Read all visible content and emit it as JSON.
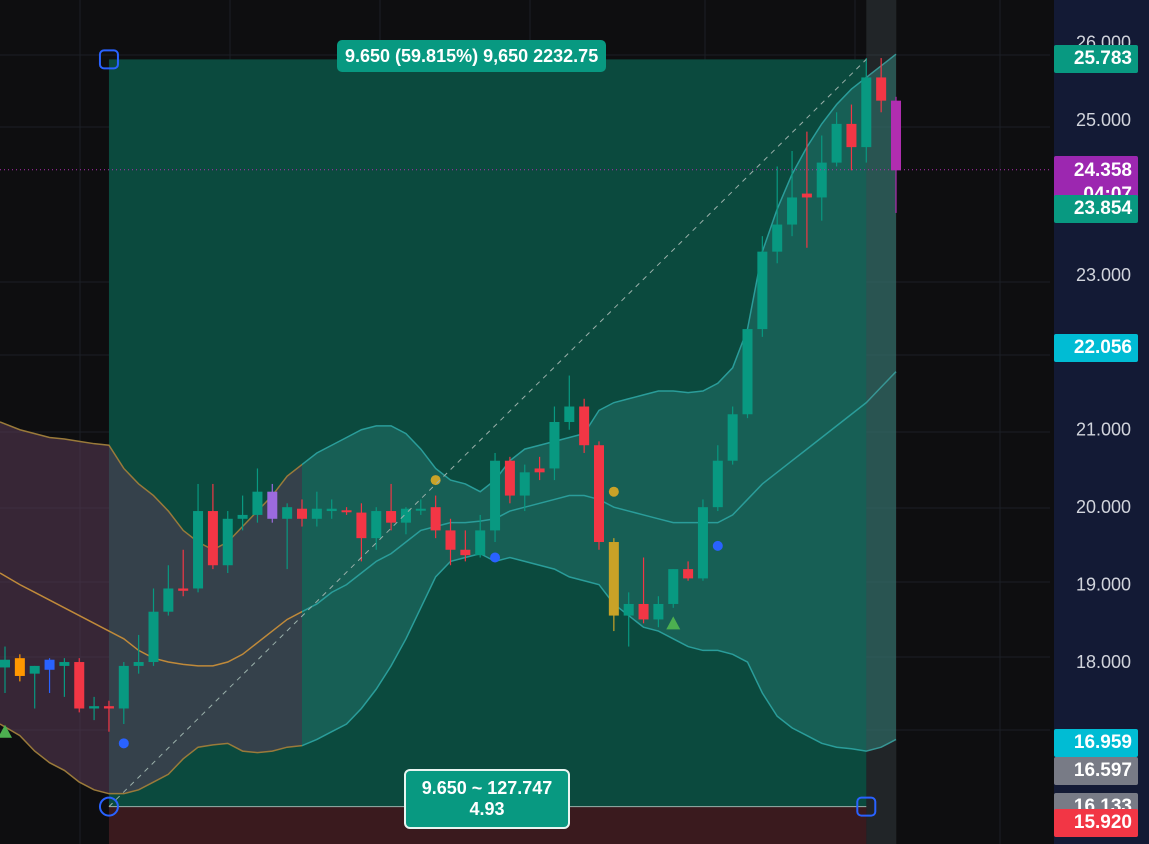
{
  "chart_data": {
    "type": "candlestick",
    "y_axis": {
      "ticks": [
        "26.000",
        "25.000",
        "23.000",
        "22.056",
        "21.000",
        "20.000",
        "19.000",
        "18.000"
      ],
      "range": [
        15.65,
        26.55
      ]
    },
    "candles": [
      {
        "o": 17.93,
        "h": 18.2,
        "l": 17.6,
        "c": 18.03,
        "color": "#089981"
      },
      {
        "o": 18.05,
        "h": 18.1,
        "l": 17.75,
        "c": 17.82,
        "color": "#ff9800"
      },
      {
        "o": 17.85,
        "h": 17.95,
        "l": 17.4,
        "c": 17.95,
        "color": "#089981"
      },
      {
        "o": 17.9,
        "h": 18.05,
        "l": 17.6,
        "c": 18.03,
        "color": "#2962ff"
      },
      {
        "o": 18.0,
        "h": 18.05,
        "l": 17.55,
        "c": 17.95,
        "color": "#089981"
      },
      {
        "o": 18.0,
        "h": 18.05,
        "l": 17.35,
        "c": 17.4,
        "color": "#f23645"
      },
      {
        "o": 17.4,
        "h": 17.55,
        "l": 17.25,
        "c": 17.43,
        "color": "#089981"
      },
      {
        "o": 17.43,
        "h": 17.5,
        "l": 17.1,
        "c": 17.4,
        "color": "#f23645"
      },
      {
        "o": 17.4,
        "h": 18.0,
        "l": 17.2,
        "c": 17.95,
        "color": "#089981"
      },
      {
        "o": 17.95,
        "h": 18.35,
        "l": 17.85,
        "c": 18.0,
        "color": "#089981"
      },
      {
        "o": 18.0,
        "h": 18.95,
        "l": 17.95,
        "c": 18.65,
        "color": "#089981"
      },
      {
        "o": 18.65,
        "h": 19.25,
        "l": 18.6,
        "c": 18.95,
        "color": "#089981"
      },
      {
        "o": 18.95,
        "h": 19.45,
        "l": 18.85,
        "c": 18.92,
        "color": "#f23645"
      },
      {
        "o": 18.95,
        "h": 20.3,
        "l": 18.9,
        "c": 19.95,
        "color": "#089981"
      },
      {
        "o": 19.95,
        "h": 20.3,
        "l": 19.2,
        "c": 19.25,
        "color": "#f23645"
      },
      {
        "o": 19.25,
        "h": 19.95,
        "l": 19.15,
        "c": 19.85,
        "color": "#089981"
      },
      {
        "o": 19.85,
        "h": 20.15,
        "l": 19.7,
        "c": 19.9,
        "color": "#089981"
      },
      {
        "o": 19.9,
        "h": 20.5,
        "l": 19.8,
        "c": 20.2,
        "color": "#089981"
      },
      {
        "o": 20.2,
        "h": 20.3,
        "l": 19.8,
        "c": 19.85,
        "color": "#9c6ade"
      },
      {
        "o": 19.85,
        "h": 20.05,
        "l": 19.2,
        "c": 20.0,
        "color": "#089981"
      },
      {
        "o": 19.98,
        "h": 20.1,
        "l": 19.75,
        "c": 19.85,
        "color": "#f23645"
      },
      {
        "o": 19.85,
        "h": 20.2,
        "l": 19.75,
        "c": 19.98,
        "color": "#089981"
      },
      {
        "o": 19.98,
        "h": 20.1,
        "l": 19.85,
        "c": 19.95,
        "color": "#089981"
      },
      {
        "o": 19.95,
        "h": 20.0,
        "l": 19.9,
        "c": 19.96,
        "color": "#f23645"
      },
      {
        "o": 19.93,
        "h": 20.05,
        "l": 19.3,
        "c": 19.6,
        "color": "#f23645"
      },
      {
        "o": 19.6,
        "h": 20.0,
        "l": 19.45,
        "c": 19.95,
        "color": "#089981"
      },
      {
        "o": 19.95,
        "h": 20.3,
        "l": 19.7,
        "c": 19.8,
        "color": "#f23645"
      },
      {
        "o": 19.8,
        "h": 20.0,
        "l": 19.65,
        "c": 19.98,
        "color": "#089981"
      },
      {
        "o": 19.98,
        "h": 20.1,
        "l": 19.9,
        "c": 19.98,
        "color": "#089981"
      },
      {
        "o": 20.0,
        "h": 20.15,
        "l": 19.6,
        "c": 19.7,
        "color": "#f23645"
      },
      {
        "o": 19.7,
        "h": 19.85,
        "l": 19.25,
        "c": 19.45,
        "color": "#f23645"
      },
      {
        "o": 19.45,
        "h": 19.7,
        "l": 19.3,
        "c": 19.38,
        "color": "#f23645"
      },
      {
        "o": 19.38,
        "h": 19.9,
        "l": 19.35,
        "c": 19.7,
        "color": "#089981"
      },
      {
        "o": 19.7,
        "h": 20.7,
        "l": 19.55,
        "c": 20.6,
        "color": "#089981"
      },
      {
        "o": 20.6,
        "h": 20.65,
        "l": 20.05,
        "c": 20.15,
        "color": "#f23645"
      },
      {
        "o": 20.15,
        "h": 20.55,
        "l": 19.95,
        "c": 20.45,
        "color": "#089981"
      },
      {
        "o": 20.45,
        "h": 20.65,
        "l": 20.35,
        "c": 20.5,
        "color": "#f23645"
      },
      {
        "o": 20.5,
        "h": 21.3,
        "l": 20.35,
        "c": 21.1,
        "color": "#089981"
      },
      {
        "o": 21.1,
        "h": 21.7,
        "l": 21.0,
        "c": 21.3,
        "color": "#089981"
      },
      {
        "o": 21.3,
        "h": 21.4,
        "l": 20.7,
        "c": 20.8,
        "color": "#f23645"
      },
      {
        "o": 20.8,
        "h": 20.85,
        "l": 19.45,
        "c": 19.55,
        "color": "#f23645"
      },
      {
        "o": 19.55,
        "h": 19.6,
        "l": 18.4,
        "c": 18.6,
        "color": "#c9a227"
      },
      {
        "o": 18.6,
        "h": 18.9,
        "l": 18.2,
        "c": 18.75,
        "color": "#089981"
      },
      {
        "o": 18.75,
        "h": 19.35,
        "l": 18.5,
        "c": 18.55,
        "color": "#f23645"
      },
      {
        "o": 18.55,
        "h": 18.85,
        "l": 18.45,
        "c": 18.75,
        "color": "#089981"
      },
      {
        "o": 18.75,
        "h": 19.2,
        "l": 18.7,
        "c": 19.2,
        "color": "#089981"
      },
      {
        "o": 19.2,
        "h": 19.3,
        "l": 19.05,
        "c": 19.08,
        "color": "#f23645"
      },
      {
        "o": 19.08,
        "h": 20.1,
        "l": 19.05,
        "c": 20.0,
        "color": "#089981"
      },
      {
        "o": 20.0,
        "h": 20.8,
        "l": 19.95,
        "c": 20.6,
        "color": "#089981"
      },
      {
        "o": 20.6,
        "h": 21.3,
        "l": 20.55,
        "c": 21.2,
        "color": "#089981"
      },
      {
        "o": 21.2,
        "h": 22.3,
        "l": 21.15,
        "c": 22.3,
        "color": "#089981"
      },
      {
        "o": 22.3,
        "h": 23.5,
        "l": 22.2,
        "c": 23.3,
        "color": "#089981"
      },
      {
        "o": 23.3,
        "h": 24.4,
        "l": 23.15,
        "c": 23.65,
        "color": "#089981"
      },
      {
        "o": 23.65,
        "h": 24.6,
        "l": 23.5,
        "c": 24.0,
        "color": "#089981"
      },
      {
        "o": 24.0,
        "h": 24.85,
        "l": 23.35,
        "c": 24.05,
        "color": "#f23645"
      },
      {
        "o": 24.0,
        "h": 24.8,
        "l": 23.7,
        "c": 24.45,
        "color": "#089981"
      },
      {
        "o": 24.45,
        "h": 25.1,
        "l": 24.4,
        "c": 24.95,
        "color": "#089981"
      },
      {
        "o": 24.95,
        "h": 25.2,
        "l": 24.35,
        "c": 24.65,
        "color": "#f23645"
      },
      {
        "o": 24.65,
        "h": 25.8,
        "l": 24.45,
        "c": 25.55,
        "color": "#089981"
      },
      {
        "o": 25.55,
        "h": 25.8,
        "l": 25.1,
        "c": 25.25,
        "color": "#f23645"
      },
      {
        "o": 25.25,
        "h": 25.3,
        "l": 23.8,
        "c": 24.35,
        "color": "#b02db0"
      }
    ],
    "bollinger": {
      "upper": [
        21.1,
        21.0,
        20.95,
        20.9,
        20.88,
        20.85,
        20.82,
        20.8,
        20.5,
        20.3,
        20.15,
        19.95,
        19.7,
        19.55,
        19.45,
        19.55,
        19.75,
        19.95,
        20.15,
        20.4,
        20.55,
        20.7,
        20.8,
        20.9,
        21.0,
        21.05,
        21.05,
        20.95,
        20.75,
        20.5,
        20.35,
        20.3,
        20.2,
        20.35,
        20.6,
        20.75,
        20.8,
        20.85,
        20.9,
        20.95,
        21.25,
        21.35,
        21.4,
        21.45,
        21.5,
        21.5,
        21.48,
        21.5,
        21.6,
        21.8,
        22.3,
        23.3,
        23.85,
        24.3,
        24.65,
        24.95,
        25.2,
        25.4,
        25.55,
        25.7,
        25.85
      ],
      "middle": [
        19.15,
        19.0,
        18.9,
        18.8,
        18.7,
        18.6,
        18.5,
        18.4,
        18.3,
        18.15,
        18.05,
        18.0,
        17.97,
        17.95,
        17.95,
        18.0,
        18.1,
        18.25,
        18.4,
        18.55,
        18.65,
        18.75,
        18.9,
        19.0,
        19.15,
        19.3,
        19.4,
        19.55,
        19.7,
        19.75,
        19.8,
        19.8,
        19.82,
        19.85,
        19.95,
        20.0,
        20.05,
        20.1,
        20.15,
        20.15,
        20.1,
        20.0,
        19.95,
        19.9,
        19.85,
        19.8,
        19.8,
        19.8,
        19.8,
        19.9,
        20.1,
        20.3,
        20.45,
        20.6,
        20.75,
        20.9,
        21.05,
        21.2,
        21.35,
        21.55,
        21.75
      ],
      "lower": [
        17.2,
        17.05,
        16.85,
        16.7,
        16.6,
        16.45,
        16.35,
        16.3,
        16.3,
        16.35,
        16.45,
        16.55,
        16.75,
        16.9,
        16.93,
        16.95,
        16.85,
        16.83,
        16.85,
        16.9,
        16.92,
        17.0,
        17.1,
        17.2,
        17.4,
        17.65,
        17.95,
        18.3,
        18.7,
        19.1,
        19.3,
        19.35,
        19.4,
        19.3,
        19.35,
        19.3,
        19.25,
        19.2,
        19.1,
        19.05,
        19.0,
        18.75,
        18.6,
        18.45,
        18.4,
        18.3,
        18.2,
        18.15,
        18.15,
        18.1,
        18.0,
        17.6,
        17.3,
        17.15,
        17.05,
        16.95,
        16.9,
        16.88,
        16.85,
        16.9,
        17.0
      ]
    },
    "markers": [
      {
        "i": 0,
        "y": 17.1,
        "shape": "triangle",
        "color": "#4caf50"
      },
      {
        "i": 8,
        "y": 16.95,
        "shape": "dot",
        "color": "#2962ff"
      },
      {
        "i": 29,
        "y": 20.35,
        "shape": "dot",
        "color": "#c9a227"
      },
      {
        "i": 33,
        "y": 19.35,
        "shape": "dot",
        "color": "#2962ff"
      },
      {
        "i": 41,
        "y": 20.2,
        "shape": "dot",
        "color": "#c9a227"
      },
      {
        "i": 45,
        "y": 18.5,
        "shape": "triangle",
        "color": "#4caf50"
      },
      {
        "i": 48,
        "y": 19.5,
        "shape": "dot",
        "color": "#2962ff"
      }
    ],
    "measure": {
      "start_index": 7,
      "end_index": 58,
      "low": 16.133,
      "high": 25.783,
      "top_label": "9.650 (59.815%) 9,650 2232.75",
      "bottom_label_line1": "9.650 ~ 127.747",
      "bottom_label_line2": "4.93"
    }
  },
  "price_scale": {
    "price_labels": [
      {
        "value": 25.783,
        "text": "25.783",
        "color": "#089981"
      },
      {
        "value": 24.358,
        "text": "24.358",
        "sub": "04:07",
        "color": "#9c27b0"
      },
      {
        "value": 23.854,
        "text": "23.854",
        "color": "#089981"
      },
      {
        "value": 22.056,
        "text": "22.056",
        "color": "#00bcd4"
      },
      {
        "value": 16.959,
        "text": "16.959",
        "color": "#00bcd4"
      },
      {
        "value": 16.597,
        "text": "16.597",
        "color": "#787b86"
      },
      {
        "value": 16.133,
        "text": "16.133",
        "color": "#787b86"
      },
      {
        "value": 15.92,
        "text": "15.920",
        "color": "#f23645"
      }
    ]
  },
  "colors": {
    "background": "#0e0e10",
    "axis_background": "#131a35",
    "measure_fill": "#0b4a3e",
    "band_fill": "#1f6a62",
    "band_line": "#2a9d9a",
    "current_price_line": "#b02db0"
  }
}
